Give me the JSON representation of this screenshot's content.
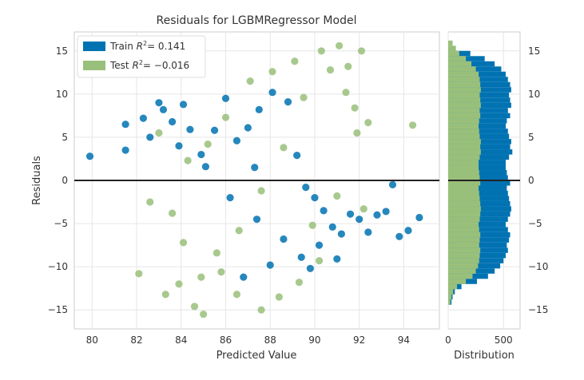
{
  "chart_data": [
    {
      "type": "scatter",
      "title": "Residuals for LGBMRegressor Model",
      "xlabel": "Predicted Value",
      "ylabel": "Residuals",
      "xlim": [
        79.2,
        95.6
      ],
      "ylim": [
        -17.2,
        17.2
      ],
      "xticks": [
        80,
        82,
        84,
        86,
        88,
        90,
        92,
        94
      ],
      "yticks": [
        -15,
        -10,
        -5,
        0,
        5,
        10,
        15
      ],
      "xtick_labels": [
        "80",
        "82",
        "84",
        "86",
        "88",
        "90",
        "92",
        "94"
      ],
      "ytick_labels": [
        "−15",
        "−10",
        "−5",
        "0",
        "5",
        "10",
        "15"
      ],
      "grid": true,
      "zero_line": 0,
      "legend_position": "top-left",
      "series": [
        {
          "name": "Train R² = 0.141",
          "legend_label_text": "Train",
          "legend_stat": "= 0.141",
          "color": "#0072b2",
          "points": [
            [
              79.9,
              2.8
            ],
            [
              81.5,
              6.5
            ],
            [
              81.5,
              3.5
            ],
            [
              82.3,
              7.2
            ],
            [
              82.6,
              5.0
            ],
            [
              83.0,
              9.0
            ],
            [
              83.2,
              8.2
            ],
            [
              83.6,
              6.8
            ],
            [
              83.9,
              4.0
            ],
            [
              84.1,
              8.8
            ],
            [
              84.4,
              5.9
            ],
            [
              84.9,
              3.0
            ],
            [
              85.1,
              1.6
            ],
            [
              85.5,
              5.8
            ],
            [
              86.0,
              9.5
            ],
            [
              86.5,
              4.6
            ],
            [
              87.0,
              6.1
            ],
            [
              87.5,
              8.2
            ],
            [
              88.1,
              10.2
            ],
            [
              88.8,
              9.1
            ],
            [
              89.2,
              2.9
            ],
            [
              89.6,
              -0.8
            ],
            [
              90.0,
              -2.0
            ],
            [
              90.4,
              -3.5
            ],
            [
              90.8,
              -5.4
            ],
            [
              91.2,
              -6.2
            ],
            [
              91.6,
              -3.9
            ],
            [
              92.0,
              -4.5
            ],
            [
              92.4,
              -6.0
            ],
            [
              92.8,
              -4.0
            ],
            [
              93.2,
              -3.6
            ],
            [
              93.5,
              -0.5
            ],
            [
              93.8,
              -6.5
            ],
            [
              94.2,
              -5.8
            ],
            [
              94.7,
              -4.3
            ],
            [
              86.2,
              -2.0
            ],
            [
              87.4,
              -4.5
            ],
            [
              88.6,
              -6.8
            ],
            [
              89.4,
              -8.9
            ],
            [
              90.2,
              -7.5
            ],
            [
              89.8,
              -10.2
            ],
            [
              91.0,
              -9.1
            ],
            [
              86.8,
              -11.2
            ],
            [
              88.0,
              -9.8
            ],
            [
              87.3,
              1.5
            ]
          ]
        },
        {
          "name": "Test R² = −0.016",
          "legend_label_text": "Test",
          "legend_stat": "= −0.016",
          "color": "#99c07a",
          "points": [
            [
              82.1,
              -10.8
            ],
            [
              82.6,
              -2.5
            ],
            [
              83.0,
              5.5
            ],
            [
              83.3,
              -13.2
            ],
            [
              83.6,
              -3.8
            ],
            [
              83.9,
              -12.0
            ],
            [
              84.1,
              -7.2
            ],
            [
              84.3,
              2.3
            ],
            [
              84.6,
              -14.6
            ],
            [
              84.9,
              -11.2
            ],
            [
              85.2,
              4.2
            ],
            [
              85.6,
              -8.4
            ],
            [
              86.0,
              7.3
            ],
            [
              86.6,
              -5.8
            ],
            [
              87.1,
              11.5
            ],
            [
              87.6,
              -1.2
            ],
            [
              88.1,
              12.6
            ],
            [
              88.6,
              3.8
            ],
            [
              89.1,
              13.8
            ],
            [
              89.5,
              9.6
            ],
            [
              89.9,
              -5.2
            ],
            [
              90.3,
              15.0
            ],
            [
              90.7,
              12.8
            ],
            [
              91.1,
              15.6
            ],
            [
              91.5,
              13.2
            ],
            [
              91.8,
              8.4
            ],
            [
              92.1,
              15.0
            ],
            [
              92.4,
              6.7
            ],
            [
              94.4,
              6.4
            ],
            [
              91.9,
              5.5
            ],
            [
              92.2,
              -3.3
            ],
            [
              91.4,
              10.2
            ],
            [
              90.2,
              -9.3
            ],
            [
              89.3,
              -11.8
            ],
            [
              88.4,
              -13.5
            ],
            [
              87.6,
              -15.0
            ],
            [
              86.5,
              -13.2
            ],
            [
              85.8,
              -10.6
            ],
            [
              85.0,
              -15.5
            ],
            [
              91.0,
              -1.8
            ]
          ]
        }
      ]
    },
    {
      "type": "bar",
      "orientation": "horizontal",
      "xlabel": "Distribution",
      "xlim": [
        0,
        650
      ],
      "xticks": [
        0,
        500
      ],
      "xtick_labels": [
        "0",
        "500"
      ],
      "ylim": [
        -17.2,
        17.2
      ],
      "yticks": [
        -15,
        -10,
        -5,
        0,
        5,
        10,
        15
      ],
      "ytick_labels": [
        "−15",
        "−10",
        "−5",
        "0",
        "5",
        "10",
        "15"
      ],
      "grid": true,
      "bin_width": 0.6,
      "series": [
        {
          "name": "Train",
          "color": "#0072b2",
          "bins_from": -14.4,
          "counts": [
            30,
            40,
            60,
            120,
            260,
            360,
            420,
            470,
            500,
            520,
            540,
            530,
            550,
            560,
            540,
            520,
            540,
            560,
            570,
            560,
            550,
            540,
            530,
            560,
            540,
            530,
            520,
            520,
            550,
            580,
            560,
            570,
            550,
            540,
            520,
            530,
            560,
            540,
            570,
            560,
            550,
            570,
            560,
            540,
            520,
            480,
            420,
            330,
            200
          ]
        },
        {
          "name": "Test",
          "color": "#99c07a",
          "bins_from": -14.4,
          "counts": [
            20,
            30,
            45,
            80,
            160,
            220,
            250,
            270,
            280,
            285,
            290,
            280,
            285,
            290,
            280,
            275,
            285,
            290,
            295,
            290,
            285,
            280,
            275,
            290,
            285,
            280,
            275,
            275,
            285,
            295,
            290,
            295,
            285,
            280,
            275,
            280,
            290,
            285,
            295,
            290,
            285,
            295,
            290,
            285,
            275,
            250,
            210,
            160,
            100,
            70,
            40
          ]
        }
      ]
    }
  ]
}
